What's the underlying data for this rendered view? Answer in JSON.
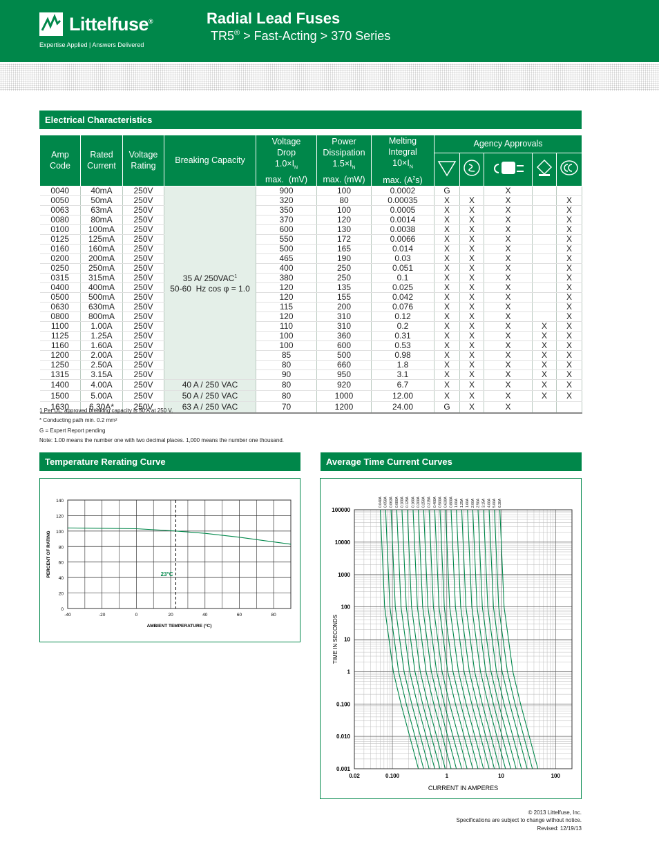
{
  "header": {
    "logo": "Littelfuse",
    "logo_mark": "®",
    "tagline": "Expertise Applied | Answers Delivered",
    "title": "Radial Lead Fuses",
    "subtitle": {
      "product": "TR5",
      "mark": "®",
      "path": "> Fast-Acting > 370 Series"
    }
  },
  "table": {
    "section": "Electrical Characteristics",
    "headers": {
      "amp_code": [
        "Amp",
        "Code"
      ],
      "rated_current": [
        "Rated",
        "Current"
      ],
      "voltage_rating": [
        "Voltage",
        "Rating"
      ],
      "breaking": "Breaking Capacity",
      "voltage_drop": {
        "lines": [
          "Voltage",
          "Drop"
        ],
        "factor": "1.0×I",
        "sub": "N",
        "unit": "max.  (mV)"
      },
      "power": {
        "lines": [
          "Power",
          "Dissipation"
        ],
        "factor": "1.5×I",
        "sub": "N",
        "unit": "max. (mW)"
      },
      "melting": {
        "lines": [
          "Melting",
          "Integral"
        ],
        "factor": "10×I",
        "sub": "N",
        "unit": "max. (A",
        "sup": "2",
        "unit_end": "s)"
      },
      "agency": "Agency Approvals"
    },
    "breaking_main": {
      "line1": "35 A/ 250VAC",
      "sup": "1",
      "line2": "50-60  Hz cos φ = 1.0"
    },
    "rows": [
      {
        "code": "0040",
        "current": "40mA",
        "voltage": "250V",
        "drop": "900",
        "power": "100",
        "i2t": "0.0002",
        "approvals": [
          "G",
          null,
          "X",
          null,
          null
        ]
      },
      {
        "code": "0050",
        "current": "50mA",
        "voltage": "250V",
        "drop": "320",
        "power": "80",
        "i2t": "0.00035",
        "approvals": [
          "X",
          "X",
          "X",
          null,
          "X"
        ]
      },
      {
        "code": "0063",
        "current": "63mA",
        "voltage": "250V",
        "drop": "350",
        "power": "100",
        "i2t": "0.0005",
        "approvals": [
          "X",
          "X",
          "X",
          null,
          "X"
        ]
      },
      {
        "code": "0080",
        "current": "80mA",
        "voltage": "250V",
        "drop": "370",
        "power": "120",
        "i2t": "0.0014",
        "approvals": [
          "X",
          "X",
          "X",
          null,
          "X"
        ]
      },
      {
        "code": "0100",
        "current": "100mA",
        "voltage": "250V",
        "drop": "600",
        "power": "130",
        "i2t": "0.0038",
        "approvals": [
          "X",
          "X",
          "X",
          null,
          "X"
        ]
      },
      {
        "code": "0125",
        "current": "125mA",
        "voltage": "250V",
        "drop": "550",
        "power": "172",
        "i2t": "0.0066",
        "approvals": [
          "X",
          "X",
          "X",
          null,
          "X"
        ]
      },
      {
        "code": "0160",
        "current": "160mA",
        "voltage": "250V",
        "drop": "500",
        "power": "165",
        "i2t": "0.014",
        "approvals": [
          "X",
          "X",
          "X",
          null,
          "X"
        ]
      },
      {
        "code": "0200",
        "current": "200mA",
        "voltage": "250V",
        "drop": "465",
        "power": "190",
        "i2t": "0.03",
        "approvals": [
          "X",
          "X",
          "X",
          null,
          "X"
        ]
      },
      {
        "code": "0250",
        "current": "250mA",
        "voltage": "250V",
        "drop": "400",
        "power": "250",
        "i2t": "0.051",
        "approvals": [
          "X",
          "X",
          "X",
          null,
          "X"
        ]
      },
      {
        "code": "0315",
        "current": "315mA",
        "voltage": "250V",
        "drop": "380",
        "power": "250",
        "i2t": "0.1",
        "approvals": [
          "X",
          "X",
          "X",
          null,
          "X"
        ]
      },
      {
        "code": "0400",
        "current": "400mA",
        "voltage": "250V",
        "drop": "120",
        "power": "135",
        "i2t": "0.025",
        "approvals": [
          "X",
          "X",
          "X",
          null,
          "X"
        ]
      },
      {
        "code": "0500",
        "current": "500mA",
        "voltage": "250V",
        "drop": "120",
        "power": "155",
        "i2t": "0.042",
        "approvals": [
          "X",
          "X",
          "X",
          null,
          "X"
        ]
      },
      {
        "code": "0630",
        "current": "630mA",
        "voltage": "250V",
        "drop": "115",
        "power": "200",
        "i2t": "0.076",
        "approvals": [
          "X",
          "X",
          "X",
          null,
          "X"
        ]
      },
      {
        "code": "0800",
        "current": "800mA",
        "voltage": "250V",
        "drop": "120",
        "power": "310",
        "i2t": "0.12",
        "approvals": [
          "X",
          "X",
          "X",
          null,
          "X"
        ]
      },
      {
        "code": "1100",
        "current": "1.00A",
        "voltage": "250V",
        "drop": "110",
        "power": "310",
        "i2t": "0.2",
        "approvals": [
          "X",
          "X",
          "X",
          "X",
          "X"
        ]
      },
      {
        "code": "1125",
        "current": "1.25A",
        "voltage": "250V",
        "drop": "100",
        "power": "360",
        "i2t": "0.31",
        "approvals": [
          "X",
          "X",
          "X",
          "X",
          "X"
        ]
      },
      {
        "code": "1160",
        "current": "1.60A",
        "voltage": "250V",
        "drop": "100",
        "power": "600",
        "i2t": "0.53",
        "approvals": [
          "X",
          "X",
          "X",
          "X",
          "X"
        ]
      },
      {
        "code": "1200",
        "current": "2.00A",
        "voltage": "250V",
        "drop": "85",
        "power": "500",
        "i2t": "0.98",
        "approvals": [
          "X",
          "X",
          "X",
          "X",
          "X"
        ]
      },
      {
        "code": "1250",
        "current": "2.50A",
        "voltage": "250V",
        "drop": "80",
        "power": "660",
        "i2t": "1.8",
        "approvals": [
          "X",
          "X",
          "X",
          "X",
          "X"
        ]
      },
      {
        "code": "1315",
        "current": "3.15A",
        "voltage": "250V",
        "drop": "90",
        "power": "950",
        "i2t": "3.1",
        "approvals": [
          "X",
          "X",
          "X",
          "X",
          "X"
        ]
      },
      {
        "code": "1400",
        "current": "4.00A",
        "voltage": "250V",
        "breaking": "40 A / 250 VAC",
        "drop": "80",
        "power": "920",
        "i2t": "6.7",
        "approvals": [
          "X",
          "X",
          "X",
          "X",
          "X"
        ]
      },
      {
        "code": "1500",
        "current": "5.00A",
        "voltage": "250V",
        "breaking": "50 A / 250 VAC",
        "drop": "80",
        "power": "1000",
        "i2t": "12.00",
        "approvals": [
          "X",
          "X",
          "X",
          "X",
          "X"
        ]
      },
      {
        "code": "1630",
        "current": "6.30A*",
        "voltage": "250V",
        "breaking": "63 A / 250 VAC",
        "drop": "70",
        "power": "1200",
        "i2t": "24.00",
        "approvals": [
          "G",
          "X",
          "X",
          null,
          null
        ]
      }
    ]
  },
  "notes": [
    "1  Per UL, approved breaking capacity is 50 A at 250 V.",
    "*  Conducting path min. 0.2 mm²",
    "G = Expert Report pending",
    "Note: 1.00 means the number one with two decimal places. 1,000 means the number one thousand."
  ],
  "chart_data": [
    {
      "type": "line",
      "title": "Temperature Rerating Curve",
      "x_label": "AMBIENT TEMPERATURE (°C)",
      "y_label": "PERCENT OF RATING",
      "x": [
        -40,
        0,
        23,
        40,
        60,
        80,
        90
      ],
      "values": [
        104,
        103,
        100,
        97,
        92,
        86,
        83
      ],
      "color": "#00874a",
      "xlim": [
        -40,
        90
      ],
      "ylim": [
        0,
        140
      ],
      "xticks": [
        -40,
        -20,
        0,
        20,
        40,
        60,
        80
      ],
      "yticks": [
        0,
        20,
        40,
        60,
        80,
        100,
        120,
        140
      ],
      "grid": true,
      "annotation": {
        "label": "23°C",
        "x": 23
      }
    },
    {
      "type": "line",
      "title": "Average Time Current Curves",
      "x_label": "CURRENT IN AMPERES",
      "y_label": "TIME IN SECONDS",
      "xscale": "log",
      "yscale": "log",
      "grid": true,
      "xlim": [
        0.02,
        200
      ],
      "ylim": [
        0.001,
        100000
      ],
      "xticks": [
        0.02,
        {
          "value": 0.1,
          "label": "0.100"
        },
        1,
        10,
        100
      ],
      "yticks": [
        {
          "value": 0.001,
          "label": "0.001"
        },
        {
          "value": 0.01,
          "label": "0.010"
        },
        {
          "value": 0.1,
          "label": "0.100"
        },
        1,
        10,
        100,
        1000,
        10000,
        100000
      ],
      "series": [
        {
          "name": "0.040A",
          "color": "#00874a",
          "x": [
            0.06,
            0.072,
            0.104,
            0.144,
            0.208,
            0.3
          ],
          "values": [
            100000,
            100,
            1,
            0.1,
            0.01,
            0.001
          ]
        },
        {
          "name": "0.050A",
          "color": "#00874a",
          "x": [
            0.075,
            0.09,
            0.13,
            0.18,
            0.26,
            0.375
          ],
          "values": [
            100000,
            100,
            1,
            0.1,
            0.01,
            0.001
          ]
        },
        {
          "name": "0.063A",
          "color": "#00874a",
          "x": [
            0.0945,
            0.113,
            0.164,
            0.227,
            0.328,
            0.473
          ],
          "values": [
            100000,
            100,
            1,
            0.1,
            0.01,
            0.001
          ]
        },
        {
          "name": "0.080A",
          "color": "#00874a",
          "x": [
            0.12,
            0.144,
            0.208,
            0.288,
            0.416,
            0.6
          ],
          "values": [
            100000,
            100,
            1,
            0.1,
            0.01,
            0.001
          ]
        },
        {
          "name": "0.100A",
          "color": "#00874a",
          "x": [
            0.15,
            0.18,
            0.26,
            0.36,
            0.52,
            0.75
          ],
          "values": [
            100000,
            100,
            1,
            0.1,
            0.01,
            0.001
          ]
        },
        {
          "name": "0.125A",
          "color": "#00874a",
          "x": [
            0.188,
            0.225,
            0.325,
            0.45,
            0.65,
            0.938
          ],
          "values": [
            100000,
            100,
            1,
            0.1,
            0.01,
            0.001
          ]
        },
        {
          "name": "0.160A",
          "color": "#00874a",
          "x": [
            0.24,
            0.288,
            0.416,
            0.576,
            0.832,
            1.2
          ],
          "values": [
            100000,
            100,
            1,
            0.1,
            0.01,
            0.001
          ]
        },
        {
          "name": "0.200A",
          "color": "#00874a",
          "x": [
            0.3,
            0.36,
            0.52,
            0.72,
            1.04,
            1.5
          ],
          "values": [
            100000,
            100,
            1,
            0.1,
            0.01,
            0.001
          ]
        },
        {
          "name": "0.250A",
          "color": "#00874a",
          "x": [
            0.375,
            0.45,
            0.65,
            0.9,
            1.3,
            1.88
          ],
          "values": [
            100000,
            100,
            1,
            0.1,
            0.01,
            0.001
          ]
        },
        {
          "name": "0.315A",
          "color": "#00874a",
          "x": [
            0.473,
            0.567,
            0.819,
            1.13,
            1.64,
            2.36
          ],
          "values": [
            100000,
            100,
            1,
            0.1,
            0.01,
            0.001
          ]
        },
        {
          "name": "0.400A",
          "color": "#00874a",
          "x": [
            0.6,
            0.72,
            1.04,
            1.44,
            2.08,
            3
          ],
          "values": [
            100000,
            100,
            1,
            0.1,
            0.01,
            0.001
          ]
        },
        {
          "name": "0.500A",
          "color": "#00874a",
          "x": [
            0.75,
            0.9,
            1.3,
            1.8,
            2.6,
            3.75
          ],
          "values": [
            100000,
            100,
            1,
            0.1,
            0.01,
            0.001
          ]
        },
        {
          "name": "0.630A",
          "color": "#00874a",
          "x": [
            0.945,
            1.13,
            1.64,
            2.27,
            3.28,
            4.73
          ],
          "values": [
            100000,
            100,
            1,
            0.1,
            0.01,
            0.001
          ]
        },
        {
          "name": "0.800A",
          "color": "#00874a",
          "x": [
            1.2,
            1.44,
            2.08,
            2.88,
            4.16,
            6
          ],
          "values": [
            100000,
            100,
            1,
            0.1,
            0.01,
            0.001
          ]
        },
        {
          "name": "1.00A",
          "color": "#00874a",
          "x": [
            1.5,
            1.8,
            2.6,
            3.6,
            5.2,
            7.5
          ],
          "values": [
            100000,
            100,
            1,
            0.1,
            0.01,
            0.001
          ]
        },
        {
          "name": "1.25A",
          "color": "#00874a",
          "x": [
            1.88,
            2.25,
            3.25,
            4.5,
            6.5,
            9.38
          ],
          "values": [
            100000,
            100,
            1,
            0.1,
            0.01,
            0.001
          ]
        },
        {
          "name": "1.60A",
          "color": "#00874a",
          "x": [
            2.4,
            2.88,
            4.16,
            5.76,
            8.32,
            12
          ],
          "values": [
            100000,
            100,
            1,
            0.1,
            0.01,
            0.001
          ]
        },
        {
          "name": "2.00A",
          "color": "#00874a",
          "x": [
            3,
            3.6,
            5.2,
            7.2,
            10.4,
            15
          ],
          "values": [
            100000,
            100,
            1,
            0.1,
            0.01,
            0.001
          ]
        },
        {
          "name": "2.50A",
          "color": "#00874a",
          "x": [
            3.75,
            4.5,
            6.5,
            9,
            13,
            18.8
          ],
          "values": [
            100000,
            100,
            1,
            0.1,
            0.01,
            0.001
          ]
        },
        {
          "name": "3.15A",
          "color": "#00874a",
          "x": [
            4.73,
            5.67,
            8.19,
            11.3,
            16.4,
            23.6
          ],
          "values": [
            100000,
            100,
            1,
            0.1,
            0.01,
            0.001
          ]
        },
        {
          "name": "4.00A",
          "color": "#00874a",
          "x": [
            6,
            7.2,
            10.4,
            14.4,
            20.8,
            30
          ],
          "values": [
            100000,
            100,
            1,
            0.1,
            0.01,
            0.001
          ]
        },
        {
          "name": "5.00A",
          "color": "#00874a",
          "x": [
            7.5,
            9,
            13,
            18,
            26,
            37.5
          ],
          "values": [
            100000,
            100,
            1,
            0.1,
            0.01,
            0.001
          ]
        },
        {
          "name": "6.30A",
          "color": "#00874a",
          "x": [
            9.45,
            11.3,
            16.4,
            22.7,
            32.8,
            47.3
          ],
          "values": [
            100000,
            100,
            1,
            0.1,
            0.01,
            0.001
          ]
        }
      ]
    }
  ],
  "footer": [
    "© 2013 Littelfuse, Inc.",
    "Specifications are subject to change without notice.",
    "Revised: 12/19/13"
  ]
}
